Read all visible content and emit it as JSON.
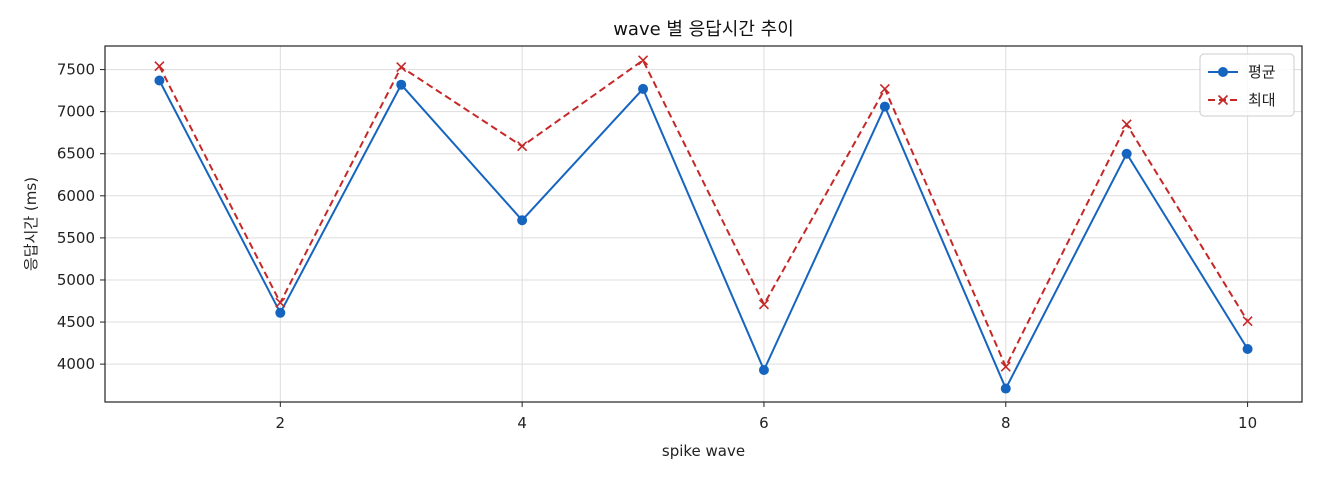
{
  "chart_data": {
    "type": "line",
    "title": "wave 별 응답시간 추이",
    "xlabel": "spike wave",
    "ylabel": "응답시간 (ms)",
    "x": [
      1,
      2,
      3,
      4,
      5,
      6,
      7,
      8,
      9,
      10
    ],
    "xlim": [
      0.55,
      10.45
    ],
    "ylim": [
      3550,
      7780
    ],
    "x_ticks": [
      2,
      4,
      6,
      8,
      10
    ],
    "y_ticks": [
      4000,
      4500,
      5000,
      5500,
      6000,
      6500,
      7000,
      7500
    ],
    "grid": true,
    "legend_position": "top-right",
    "series": [
      {
        "name": "평균",
        "color": "#1565c0",
        "line_style": "solid",
        "marker": "circle",
        "values": [
          7370,
          4610,
          7320,
          5710,
          7270,
          3930,
          7060,
          3710,
          6500,
          4180
        ]
      },
      {
        "name": "최대",
        "color": "#c62828",
        "line_style": "dashed",
        "marker": "x",
        "values": [
          7540,
          4730,
          7530,
          6590,
          7610,
          4710,
          7270,
          3970,
          6850,
          4510
        ]
      }
    ]
  }
}
